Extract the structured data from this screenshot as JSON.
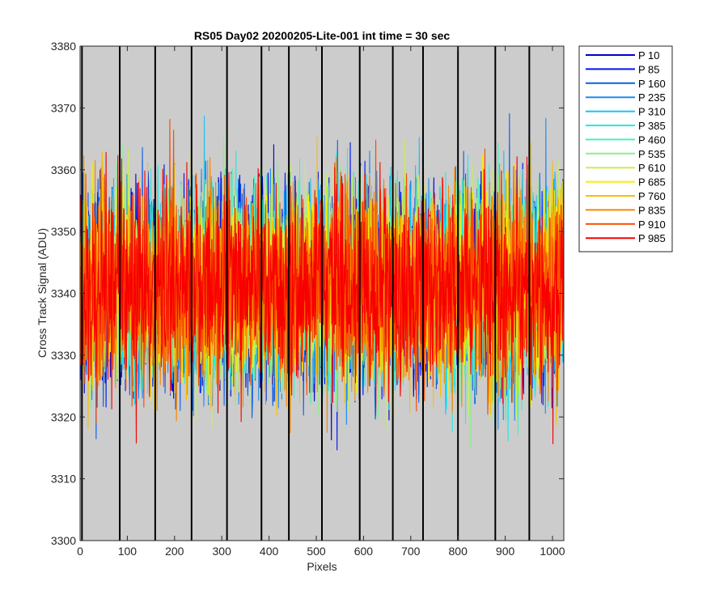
{
  "chart_data": {
    "type": "line",
    "title": "RS05 Day02 20200205-Lite-001 int time = 30 sec",
    "xlabel": "Pixels",
    "ylabel": "Cross Track Signal (ADU)",
    "xlim": [
      0,
      1024
    ],
    "ylim": [
      3300,
      3380
    ],
    "xticks": [
      0,
      100,
      200,
      300,
      400,
      500,
      600,
      700,
      800,
      900,
      1000
    ],
    "yticks": [
      3300,
      3310,
      3320,
      3330,
      3340,
      3350,
      3360,
      3370,
      3380
    ],
    "background_color": "#cccccc",
    "vertical_markers": [
      4,
      84,
      159,
      236,
      311,
      384,
      442,
      512,
      592,
      662,
      726,
      800,
      879,
      951
    ],
    "vertical_marker_color": "#000000",
    "noise": {
      "mean": 3341,
      "std": 8,
      "min": 3307,
      "max": 3376,
      "points_per_series": 1024
    },
    "legend_location": "outside-upper-right",
    "series": [
      {
        "name": "P 10",
        "color": "#0000cc"
      },
      {
        "name": "P 85",
        "color": "#0016f0"
      },
      {
        "name": "P 160",
        "color": "#0c5ee8"
      },
      {
        "name": "P 235",
        "color": "#1c8cf0"
      },
      {
        "name": "P 310",
        "color": "#1cc0f0"
      },
      {
        "name": "P 385",
        "color": "#27e8e8"
      },
      {
        "name": "P 460",
        "color": "#44f0c0"
      },
      {
        "name": "P 535",
        "color": "#88f088"
      },
      {
        "name": "P 610",
        "color": "#c8f050"
      },
      {
        "name": "P 685",
        "color": "#f8f000"
      },
      {
        "name": "P 760",
        "color": "#f8c000"
      },
      {
        "name": "P 835",
        "color": "#f88800"
      },
      {
        "name": "P 910",
        "color": "#f84a00"
      },
      {
        "name": "P 985",
        "color": "#f80000"
      }
    ]
  }
}
